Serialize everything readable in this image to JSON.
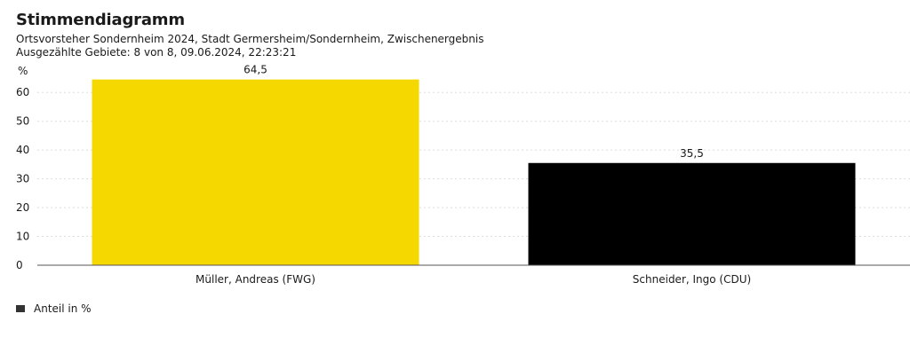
{
  "header": {
    "title": "Stimmendiagramm",
    "subtitle": "Ortsvorsteher Sondernheim 2024, Stadt Germersheim/Sondernheim, Zwischenergebnis",
    "status": "Ausgezählte Gebiete: 8 von 8, 09.06.2024, 22:23:21"
  },
  "chart_data": {
    "type": "bar",
    "title": "Stimmendiagramm",
    "ylabel": "%",
    "ylim": [
      0,
      65
    ],
    "yticks": [
      0,
      10,
      20,
      30,
      40,
      50,
      60
    ],
    "grid": true,
    "categories": [
      "Müller, Andreas (FWG)",
      "Schneider, Ingo (CDU)"
    ],
    "values": [
      64.5,
      35.5
    ],
    "value_labels": [
      "64,5",
      "35,5"
    ],
    "colors": [
      "#f5d800",
      "#000000"
    ],
    "legend": {
      "position": "bottom-left",
      "entries": [
        "Anteil in %"
      ],
      "color": "#333333"
    }
  }
}
